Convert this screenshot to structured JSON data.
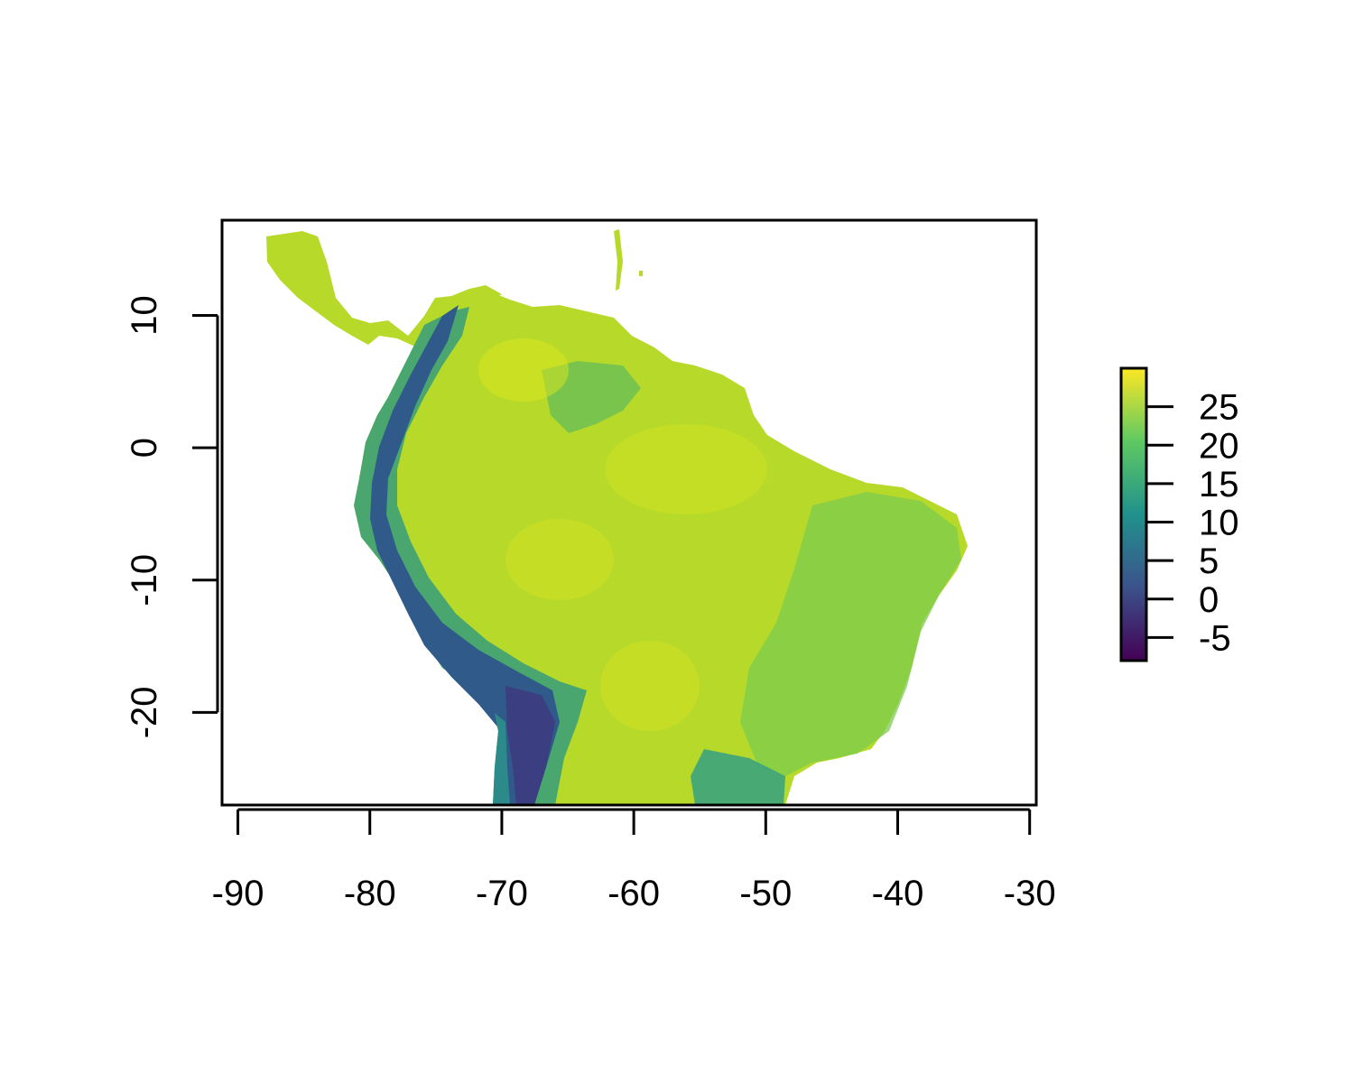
{
  "chart_data": {
    "type": "heatmap",
    "title": "",
    "xlabel": "",
    "ylabel": "",
    "xlim": [
      -91.2,
      -29.5
    ],
    "ylim": [
      -27.0,
      17.2
    ],
    "x_ticks": [
      {
        "value": -90,
        "label": "-90"
      },
      {
        "value": -80,
        "label": "-80"
      },
      {
        "value": -70,
        "label": "-70"
      },
      {
        "value": -60,
        "label": "-60"
      },
      {
        "value": -50,
        "label": "-50"
      },
      {
        "value": -40,
        "label": "-40"
      },
      {
        "value": -30,
        "label": "-30"
      }
    ],
    "y_ticks": [
      {
        "value": 10,
        "label": "10"
      },
      {
        "value": 0,
        "label": "0"
      },
      {
        "value": -10,
        "label": "-10"
      },
      {
        "value": -20,
        "label": "-20"
      }
    ],
    "legend": {
      "placement": "right",
      "range": [
        -8,
        30
      ],
      "ticks": [
        {
          "value": 25,
          "label": "25"
        },
        {
          "value": 20,
          "label": "20"
        },
        {
          "value": 15,
          "label": "15"
        },
        {
          "value": 10,
          "label": "10"
        },
        {
          "value": 5,
          "label": "5"
        },
        {
          "value": 0,
          "label": "0"
        },
        {
          "value": -5,
          "label": "-5"
        }
      ]
    },
    "colormap": [
      "#440154",
      "#3b528b",
      "#21918c",
      "#5ec962",
      "#fde725"
    ],
    "land_color": "#b7da2a",
    "andes_color": "#2f5a8a",
    "highland_color": "#6bc35c",
    "grid": false
  }
}
